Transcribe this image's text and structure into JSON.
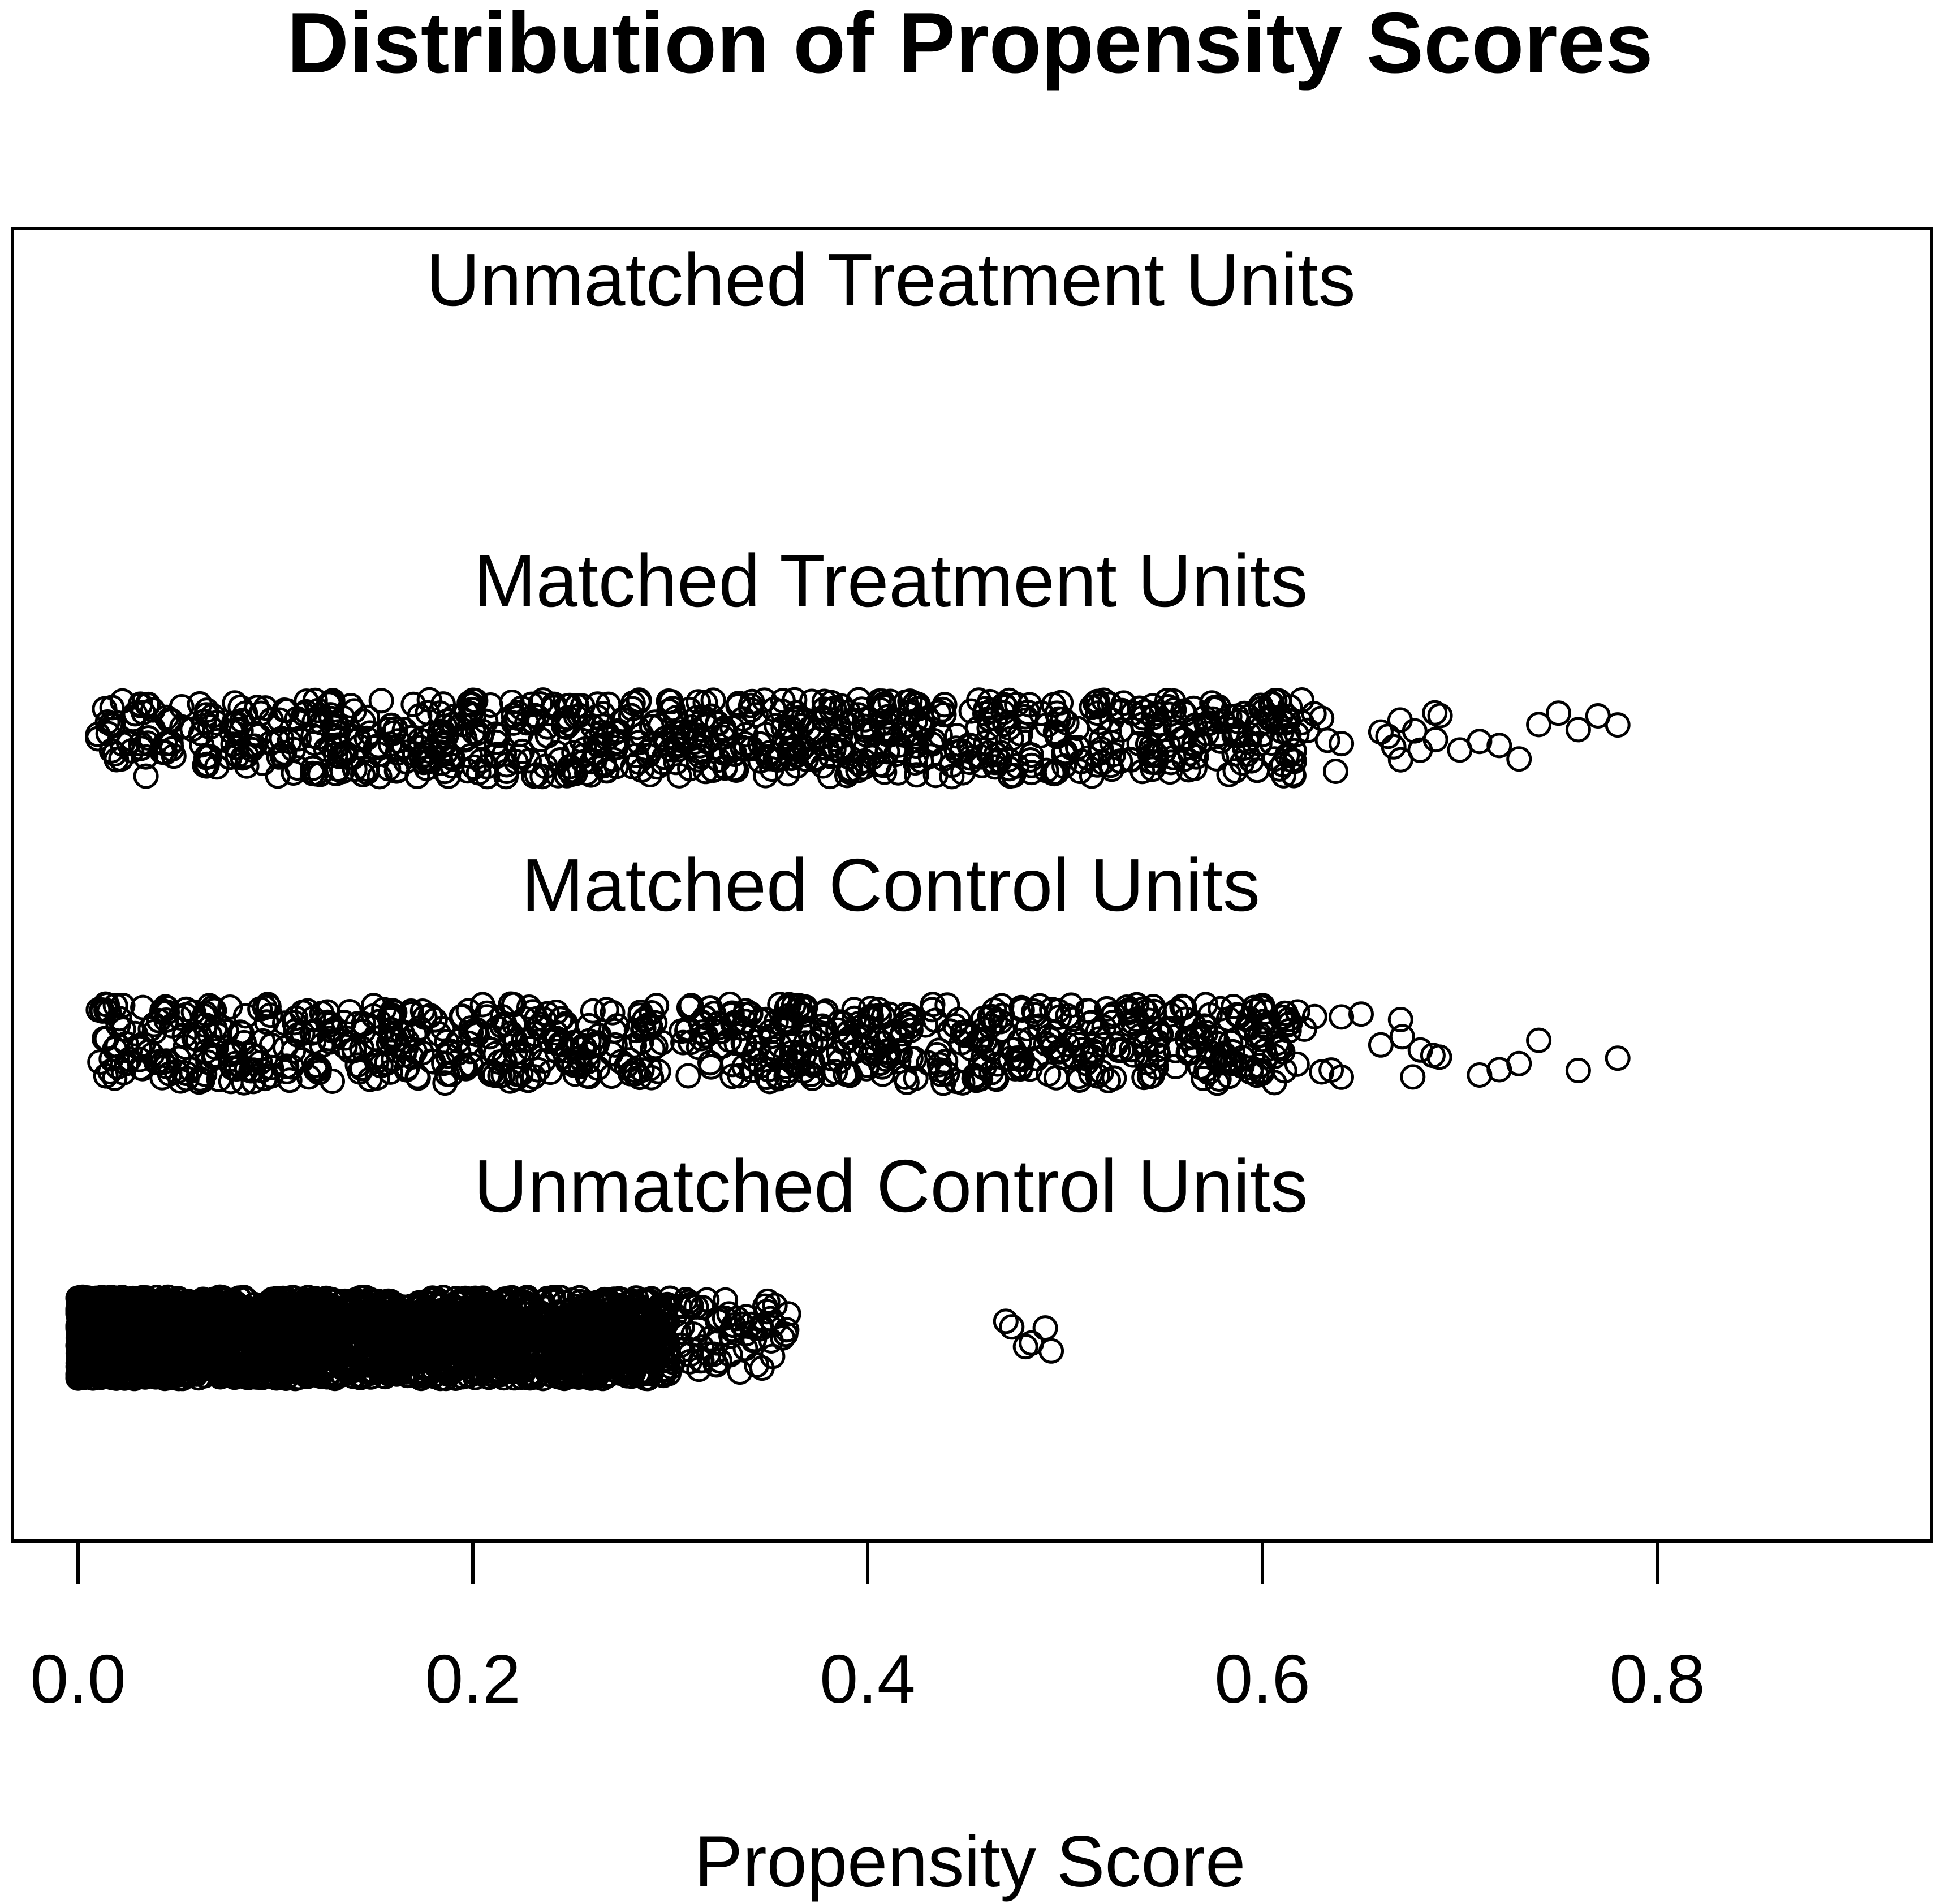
{
  "chart_data": {
    "type": "scatter",
    "title": "Distribution of Propensity Scores",
    "xlabel": "Propensity Score",
    "ylabel": "",
    "xlim": [
      0.0,
      0.9
    ],
    "x_ticks": [
      {
        "value": 0.0,
        "label": "0.0"
      },
      {
        "value": 0.2,
        "label": "0.2"
      },
      {
        "value": 0.4,
        "label": "0.4"
      },
      {
        "value": 0.6,
        "label": "0.6"
      },
      {
        "value": 0.8,
        "label": "0.8"
      }
    ],
    "marker": "open-circle",
    "jitter": "vertical",
    "groups": [
      {
        "name": "Unmatched Treatment Units",
        "count_estimate": 0,
        "range": null
      },
      {
        "name": "Matched Treatment Units",
        "count_estimate": 900,
        "range": [
          0.01,
          0.78
        ],
        "density": "dense 0.01–0.62, sparse 0.62–0.78",
        "outliers": [
          0.62,
          0.63,
          0.64,
          0.66,
          0.67,
          0.69,
          0.7,
          0.71,
          0.72,
          0.73,
          0.74,
          0.75,
          0.76,
          0.77,
          0.78
        ]
      },
      {
        "name": "Matched Control Units",
        "count_estimate": 900,
        "range": [
          0.01,
          0.78
        ],
        "density": "dense 0.01–0.62, sparse 0.62–0.78",
        "outliers": [
          0.63,
          0.64,
          0.65,
          0.66,
          0.67,
          0.68,
          0.71,
          0.72,
          0.73,
          0.74,
          0.76,
          0.78
        ]
      },
      {
        "name": "Unmatched Control Units",
        "count_estimate": 4500,
        "range": [
          0.0,
          0.49
        ],
        "density": "very dense 0.0–0.28, thinning to 0.36, small cluster 0.47–0.49",
        "cluster": [
          0.47,
          0.48,
          0.49
        ]
      }
    ]
  }
}
